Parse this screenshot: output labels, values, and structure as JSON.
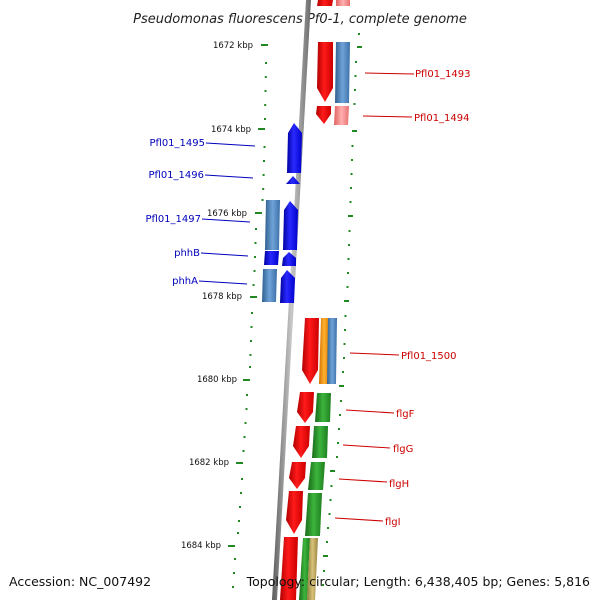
{
  "title": "Pseudomonas fluorescens Pf0-1, complete genome",
  "footer": {
    "accession": "Accession: NC_007492",
    "topology": "Topology: circular; Length: 6,438,405 bp; Genes: 5,816"
  },
  "ticks": [
    "1672 kbp",
    "1674 kbp",
    "1676 kbp",
    "1678 kbp",
    "1680 kbp",
    "1682 kbp",
    "1684 kbp"
  ],
  "genes": {
    "right": [
      "Pfl01_1493",
      "Pfl01_1494",
      "Pfl01_1500",
      "flgF",
      "flgG",
      "flgH",
      "flgI"
    ],
    "left": [
      "Pfl01_1495",
      "Pfl01_1496",
      "Pfl01_1497",
      "phhB",
      "phhA"
    ]
  },
  "colors": {
    "red": "#ee0000",
    "blue": "#0000ee",
    "steel": "#4a86c0",
    "green": "#2a9a2a",
    "orange": "#ff9900",
    "axis": "#888888",
    "tick": "#228822"
  }
}
